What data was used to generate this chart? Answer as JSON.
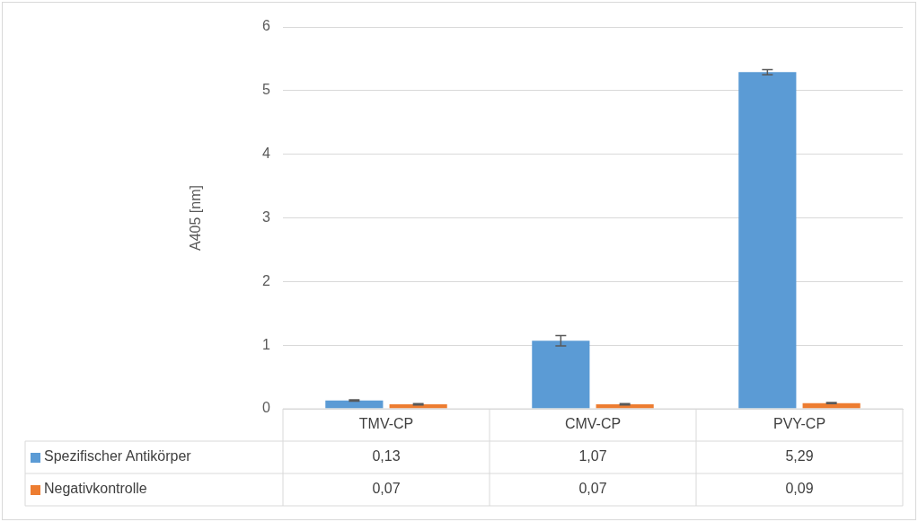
{
  "chart_data": {
    "type": "bar",
    "ylabel": "A405 [nm]",
    "categories": [
      "TMV-CP",
      "CMV-CP",
      "PVY-CP"
    ],
    "series": [
      {
        "name": "Spezifischer Antikörper",
        "color": "#5b9bd5",
        "values": [
          0.13,
          1.07,
          5.29
        ],
        "errors": [
          0.01,
          0.08,
          0.04
        ],
        "value_labels": [
          "0,13",
          "1,07",
          "5,29"
        ]
      },
      {
        "name": "Negativkontrolle",
        "color": "#ed7d31",
        "values": [
          0.07,
          0.07,
          0.09
        ],
        "errors": [
          0.01,
          0.01,
          0.01
        ],
        "value_labels": [
          "0,07",
          "0,07",
          "0,09"
        ]
      }
    ],
    "ylim": [
      0,
      6
    ],
    "yticks": [
      0,
      1,
      2,
      3,
      4,
      5,
      6
    ],
    "grid": "y",
    "legend": "bottom"
  }
}
